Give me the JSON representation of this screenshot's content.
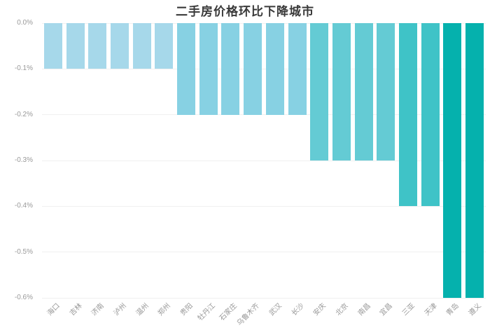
{
  "title": "二手房价格环比下降城市",
  "chart_data": {
    "type": "bar",
    "title": "二手房价格环比下降城市",
    "orientation": "vertical",
    "xlabel": "",
    "ylabel": "",
    "unit": "% (month-on-month change)",
    "ylim": [
      -0.6,
      0
    ],
    "ytick_step": 0.1,
    "ytick_labels": [
      "0.0%",
      "-0.1%",
      "-0.2%",
      "-0.3%",
      "-0.4%",
      "-0.5%",
      "-0.6%"
    ],
    "grid": true,
    "legend_position": "none",
    "categories": [
      "海口",
      "吉林",
      "济南",
      "泸州",
      "温州",
      "郑州",
      "贵阳",
      "牡丹江",
      "石家庄",
      "乌鲁木齐",
      "武汉",
      "长沙",
      "安庆",
      "北京",
      "南昌",
      "宜昌",
      "三亚",
      "天津",
      "青岛",
      "遵义"
    ],
    "values": [
      -0.1,
      -0.1,
      -0.1,
      -0.1,
      -0.1,
      -0.1,
      -0.2,
      -0.2,
      -0.2,
      -0.2,
      -0.2,
      -0.2,
      -0.3,
      -0.3,
      -0.3,
      -0.3,
      -0.4,
      -0.4,
      -0.6,
      -0.6
    ],
    "bar_colors": [
      "#a6d8ea",
      "#a6d8ea",
      "#a6d8ea",
      "#a6d8ea",
      "#a6d8ea",
      "#a6d8ea",
      "#87d1e3",
      "#87d1e3",
      "#87d1e3",
      "#87d1e3",
      "#87d1e3",
      "#87d1e3",
      "#64cbd4",
      "#64cbd4",
      "#64cbd4",
      "#64cbd4",
      "#3fc3c7",
      "#3fc3c7",
      "#05b1ad",
      "#05b1ad"
    ]
  },
  "colors": {
    "background": "#ffffff",
    "title_text": "#3a3a3a",
    "axis_label": "#999999",
    "gridline": "#f0f0f0",
    "value_neg_0_1": "#a6d8ea",
    "value_neg_0_2": "#87d1e3",
    "value_neg_0_3": "#64cbd4",
    "value_neg_0_4": "#3fc3c7",
    "value_neg_0_6": "#05b1ad"
  }
}
